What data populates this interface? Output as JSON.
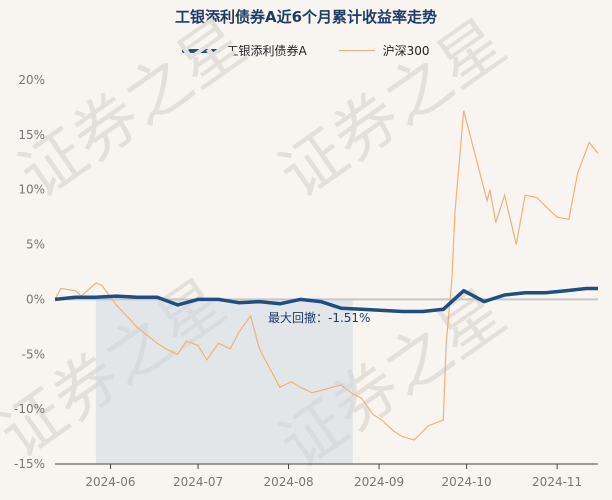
{
  "chart_data": {
    "type": "line",
    "title": "工银添利债券A近6个月累计收益率走势",
    "x_labels": [
      "2024-06",
      "2024-07",
      "2024-08",
      "2024-09",
      "2024-10",
      "2024-11"
    ],
    "y_ticks": [
      "20%",
      "15%",
      "10%",
      "5%",
      "0%",
      "-5%",
      "-10%",
      "-15%"
    ],
    "ylim": [
      -15,
      20
    ],
    "grid": false,
    "legend": "top-center",
    "annotation": "最大回撤：-1.51%",
    "series": [
      {
        "name": "工银添利债券A",
        "color": "#1f4e83",
        "x": [
          "2024-05-13",
          "2024-05-20",
          "2024-05-27",
          "2024-06-03",
          "2024-06-10",
          "2024-06-17",
          "2024-06-24",
          "2024-07-01",
          "2024-07-08",
          "2024-07-15",
          "2024-07-22",
          "2024-07-29",
          "2024-08-05",
          "2024-08-12",
          "2024-08-19",
          "2024-08-26",
          "2024-09-02",
          "2024-09-09",
          "2024-09-16",
          "2024-09-23",
          "2024-09-30",
          "2024-10-07",
          "2024-10-14",
          "2024-10-21",
          "2024-10-28",
          "2024-11-04",
          "2024-11-11",
          "2024-11-15"
        ],
        "values": [
          0.0,
          0.2,
          0.2,
          0.3,
          0.2,
          0.2,
          -0.5,
          0.0,
          0.0,
          -0.3,
          -0.2,
          -0.4,
          0.0,
          -0.2,
          -0.8,
          -0.9,
          -1.0,
          -1.1,
          -1.1,
          -0.9,
          0.8,
          -0.2,
          0.4,
          0.6,
          0.6,
          0.8,
          1.0,
          1.0
        ]
      },
      {
        "name": "沪深300",
        "color": "#f0b27a",
        "x": [
          "2024-05-13",
          "2024-05-15",
          "2024-05-20",
          "2024-05-22",
          "2024-05-27",
          "2024-05-29",
          "2024-06-03",
          "2024-06-10",
          "2024-06-17",
          "2024-06-20",
          "2024-06-24",
          "2024-06-27",
          "2024-07-01",
          "2024-07-04",
          "2024-07-08",
          "2024-07-12",
          "2024-07-15",
          "2024-07-19",
          "2024-07-22",
          "2024-07-24",
          "2024-07-29",
          "2024-08-02",
          "2024-08-05",
          "2024-08-09",
          "2024-08-12",
          "2024-08-16",
          "2024-08-19",
          "2024-08-23",
          "2024-08-26",
          "2024-08-30",
          "2024-09-02",
          "2024-09-06",
          "2024-09-09",
          "2024-09-13",
          "2024-09-18",
          "2024-09-23",
          "2024-09-24",
          "2024-09-26",
          "2024-09-27",
          "2024-09-30",
          "2024-10-08",
          "2024-10-09",
          "2024-10-11",
          "2024-10-14",
          "2024-10-18",
          "2024-10-21",
          "2024-10-25",
          "2024-10-28",
          "2024-11-01",
          "2024-11-05",
          "2024-11-08",
          "2024-11-12",
          "2024-11-15"
        ],
        "values": [
          0.0,
          1.0,
          0.8,
          0.3,
          1.5,
          1.3,
          -0.5,
          -2.5,
          -4.0,
          -4.5,
          -5.0,
          -3.8,
          -4.2,
          -5.5,
          -4.0,
          -4.5,
          -3.0,
          -1.5,
          -4.5,
          -5.5,
          -8.0,
          -7.5,
          -8.0,
          -8.5,
          -8.3,
          -8.0,
          -7.8,
          -8.6,
          -9.0,
          -10.5,
          -11.0,
          -12.0,
          -12.5,
          -12.8,
          -11.5,
          -11.0,
          -4.0,
          2.0,
          8.0,
          17.2,
          9.0,
          10.0,
          7.0,
          9.5,
          5.0,
          9.5,
          9.3,
          8.5,
          7.5,
          7.3,
          11.5,
          14.3,
          13.3
        ]
      }
    ]
  },
  "watermark": "证券之星"
}
